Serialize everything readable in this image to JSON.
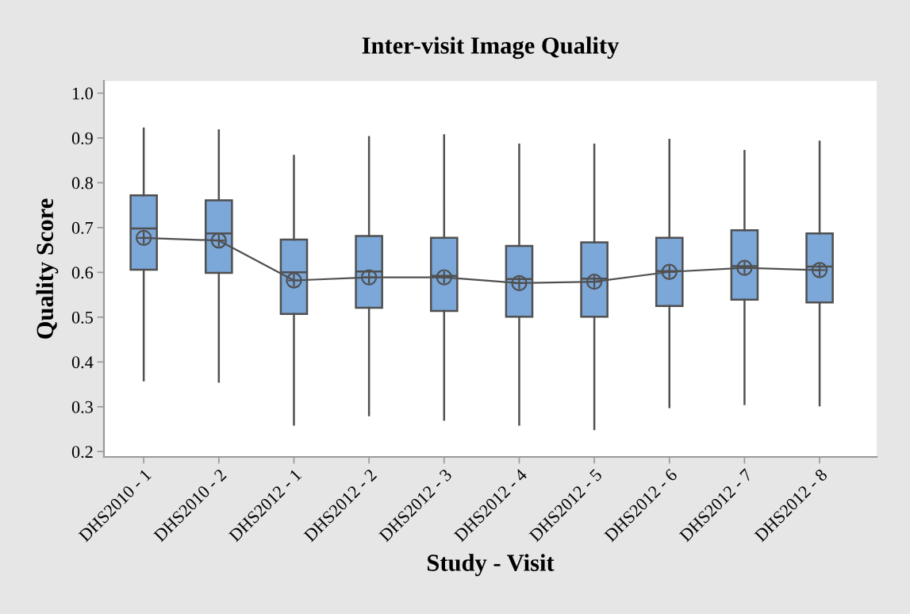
{
  "chart_data": {
    "type": "box",
    "title": "Inter-visit Image Quality",
    "xlabel": "Study - Visit",
    "ylabel": "Quality Score",
    "categories": [
      "DHS2010 - 1",
      "DHS2010 - 2",
      "DHS2012 - 1",
      "DHS2012 - 2",
      "DHS2012 - 3",
      "DHS2012 - 4",
      "DHS2012 - 5",
      "DHS2012 - 6",
      "DHS2012 - 7",
      "DHS2012 - 8"
    ],
    "ylim": [
      0.188,
      1.027
    ],
    "yticks": [
      0.2,
      0.3,
      0.4,
      0.5,
      0.6,
      0.7,
      0.8,
      0.9,
      {
        "value": 1.0,
        "label": "1.0"
      }
    ],
    "grid": false,
    "legend": false,
    "series": [
      {
        "color": "#7ba7d9",
        "boxes": [
          {
            "low": 0.359,
            "q1": 0.606,
            "median": 0.698,
            "q3": 0.772,
            "high": 0.921
          },
          {
            "low": 0.356,
            "q1": 0.599,
            "median": 0.687,
            "q3": 0.761,
            "high": 0.917
          },
          {
            "low": 0.26,
            "q1": 0.507,
            "median": 0.6,
            "q3": 0.673,
            "high": 0.86
          },
          {
            "low": 0.281,
            "q1": 0.521,
            "median": 0.602,
            "q3": 0.681,
            "high": 0.902
          },
          {
            "low": 0.271,
            "q1": 0.514,
            "median": 0.592,
            "q3": 0.677,
            "high": 0.906
          },
          {
            "low": 0.26,
            "q1": 0.501,
            "median": 0.585,
            "q3": 0.659,
            "high": 0.885
          },
          {
            "low": 0.25,
            "q1": 0.501,
            "median": 0.586,
            "q3": 0.667,
            "high": 0.885
          },
          {
            "low": 0.299,
            "q1": 0.525,
            "median": 0.603,
            "q3": 0.677,
            "high": 0.896
          },
          {
            "low": 0.306,
            "q1": 0.539,
            "median": 0.614,
            "q3": 0.694,
            "high": 0.871
          },
          {
            "low": 0.303,
            "q1": 0.533,
            "median": 0.613,
            "q3": 0.687,
            "high": 0.892
          }
        ]
      },
      {
        "type": "line",
        "color": "#505050",
        "marker": "circle",
        "line_style": "solid",
        "values": [
          0.677,
          0.671,
          0.582,
          0.589,
          0.589,
          0.576,
          0.579,
          0.601,
          0.61,
          0.605
        ]
      }
    ]
  }
}
